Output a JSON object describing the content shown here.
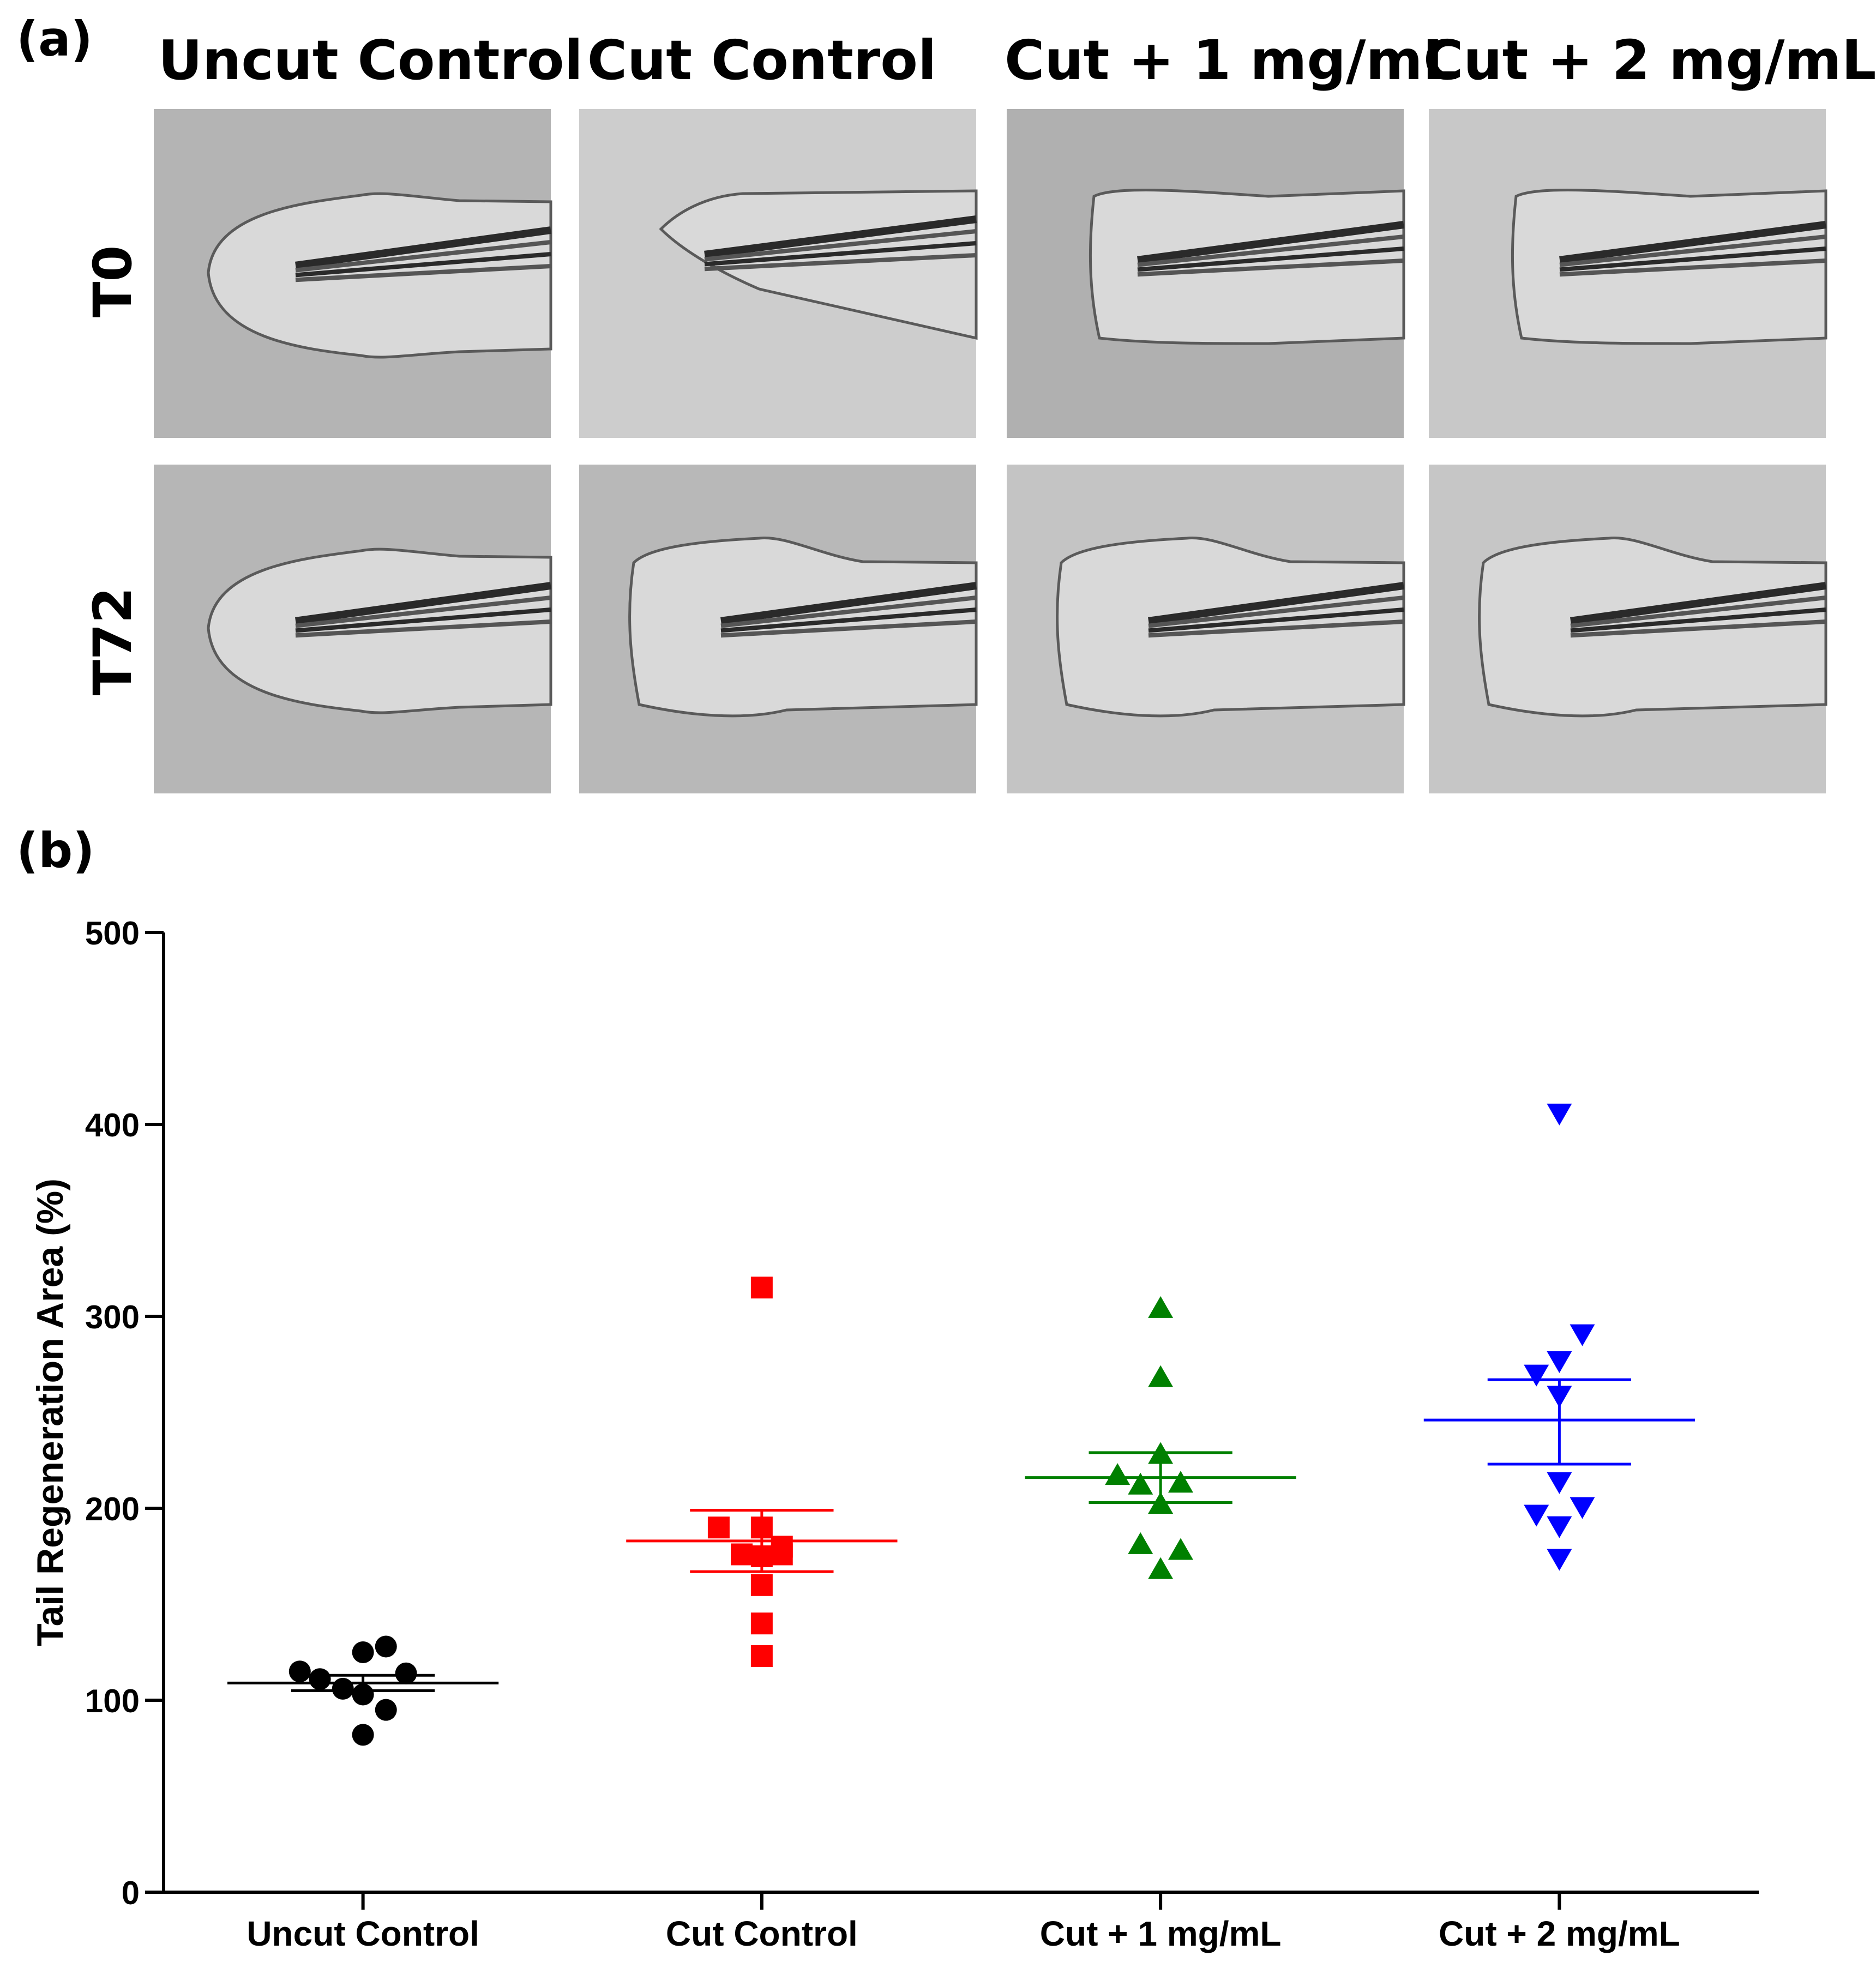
{
  "panel_a_label": "(a)",
  "panel_b_label": "(b)",
  "columns": [
    "Uncut Control",
    "Cut Control",
    "Cut + 1 mg/mL",
    "Cut + 2 mg/mL"
  ],
  "rows": [
    "T0",
    "T72"
  ],
  "images": [
    {
      "time": "T0",
      "group": "Uncut Control",
      "tail_end": "rounded-intact",
      "background": "#b4b4b4"
    },
    {
      "time": "T0",
      "group": "Cut Control",
      "tail_end": "pointed-cut",
      "background": "#cdcdcd"
    },
    {
      "time": "T0",
      "group": "Cut + 1 mg/mL",
      "tail_end": "square-cut",
      "background": "#b0b0b0"
    },
    {
      "time": "T0",
      "group": "Cut + 2 mg/mL",
      "tail_end": "square-cut",
      "background": "#c8c8c8"
    },
    {
      "time": "T72",
      "group": "Uncut Control",
      "tail_end": "rounded-intact",
      "background": "#b6b6b6"
    },
    {
      "time": "T72",
      "group": "Cut Control",
      "tail_end": "regenerated",
      "background": "#b8b8b8"
    },
    {
      "time": "T72",
      "group": "Cut + 1 mg/mL",
      "tail_end": "regenerated",
      "background": "#c4c4c4"
    },
    {
      "time": "T72",
      "group": "Cut + 2 mg/mL",
      "tail_end": "regenerated",
      "background": "#c6c6c6"
    }
  ],
  "chart_data": {
    "type": "scatter",
    "title": "",
    "xlabel": "",
    "ylabel": "Tail Regeneration Area (%)",
    "categories": [
      "Uncut Control",
      "Cut Control",
      "Cut + 1 mg/mL",
      "Cut + 2 mg/mL"
    ],
    "ylim": [
      0,
      500
    ],
    "yticks": [
      0,
      100,
      200,
      300,
      400,
      500
    ],
    "grid": false,
    "legend": "none",
    "series": [
      {
        "category": "Uncut Control",
        "marker": "circle",
        "color": "#000000",
        "points": [
          [
            -0.22,
            115
          ],
          [
            -0.15,
            111
          ],
          [
            -0.07,
            106
          ],
          [
            0.0,
            103
          ],
          [
            0.08,
            95
          ],
          [
            0.0,
            82
          ],
          [
            0.0,
            125
          ],
          [
            0.08,
            128
          ],
          [
            0.15,
            114
          ]
        ],
        "mean": 109,
        "sem_low": 105,
        "sem_high": 113
      },
      {
        "category": "Cut Control",
        "marker": "square",
        "color": "#ff0000",
        "points": [
          [
            0.0,
            315
          ],
          [
            -0.15,
            190
          ],
          [
            0.0,
            190
          ],
          [
            -0.07,
            176
          ],
          [
            0.0,
            175
          ],
          [
            0.07,
            176
          ],
          [
            0.07,
            180
          ],
          [
            0.0,
            160
          ],
          [
            0.0,
            140
          ],
          [
            0.0,
            123
          ]
        ],
        "mean": 183,
        "sem_low": 167,
        "sem_high": 199
      },
      {
        "category": "Cut + 1 mg/mL",
        "marker": "triangle-up",
        "color": "#008000",
        "points": [
          [
            0.0,
            304
          ],
          [
            0.0,
            268
          ],
          [
            0.0,
            228
          ],
          [
            -0.15,
            217
          ],
          [
            -0.07,
            212
          ],
          [
            0.07,
            213
          ],
          [
            0.0,
            202
          ],
          [
            -0.07,
            181
          ],
          [
            0.07,
            178
          ],
          [
            0.0,
            168
          ]
        ],
        "mean": 216,
        "sem_low": 203,
        "sem_high": 229
      },
      {
        "category": "Cut + 2 mg/mL",
        "marker": "triangle-down",
        "color": "#0000ff",
        "points": [
          [
            0.0,
            406
          ],
          [
            0.08,
            291
          ],
          [
            0.0,
            277
          ],
          [
            -0.08,
            270
          ],
          [
            0.0,
            259
          ],
          [
            0.0,
            214
          ],
          [
            -0.08,
            197
          ],
          [
            0.08,
            201
          ],
          [
            0.0,
            191
          ],
          [
            0.0,
            174
          ]
        ],
        "mean": 246,
        "sem_low": 223,
        "sem_high": 267
      }
    ]
  }
}
